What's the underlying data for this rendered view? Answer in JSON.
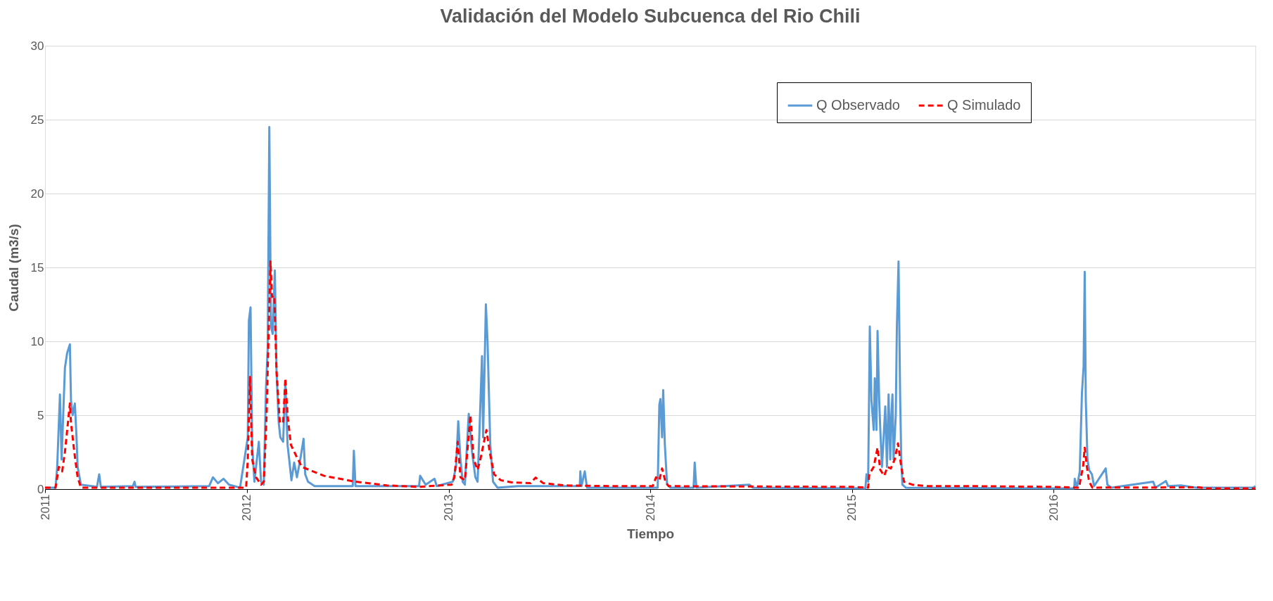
{
  "chart_data": {
    "type": "line",
    "title": "Validación del Modelo Subcuenca del Rio Chili",
    "xlabel": "Tiempo",
    "ylabel": "Caudal (m3/s)",
    "xlim": [
      "2011-01-01",
      "2016-12-31"
    ],
    "xticks": [
      {
        "value": "2011-01-01",
        "label": "2011"
      },
      {
        "value": "2012-01-01",
        "label": "2012"
      },
      {
        "value": "2013-01-01",
        "label": "2013"
      },
      {
        "value": "2014-01-01",
        "label": "2014"
      },
      {
        "value": "2015-01-01",
        "label": "2015"
      },
      {
        "value": "2016-01-01",
        "label": "2016"
      }
    ],
    "ylim": [
      0,
      30
    ],
    "yticks": [
      0,
      5,
      10,
      15,
      20,
      25,
      30
    ],
    "grid": "y",
    "legend": "top right",
    "series": [
      {
        "name": "Q Observado",
        "color": "#5b9bd5",
        "line_style": "solid",
        "x": [
          "2011-01-01",
          "2011-01-20",
          "2011-01-23",
          "2011-01-28",
          "2011-01-31",
          "2011-02-06",
          "2011-02-10",
          "2011-02-15",
          "2011-02-17",
          "2011-02-20",
          "2011-02-24",
          "2011-02-27",
          "2011-03-01",
          "2011-03-07",
          "2011-04-05",
          "2011-04-09",
          "2011-04-12",
          "2011-06-09",
          "2011-06-12",
          "2011-06-14",
          "2011-10-25",
          "2011-11-01",
          "2011-11-10",
          "2011-11-20",
          "2011-11-30",
          "2011-12-20",
          "2012-01-03",
          "2012-01-05",
          "2012-01-08",
          "2012-01-11",
          "2012-01-15",
          "2012-01-23",
          "2012-01-27",
          "2012-02-01",
          "2012-02-05",
          "2012-02-08",
          "2012-02-11",
          "2012-02-14",
          "2012-02-17",
          "2012-02-21",
          "2012-02-24",
          "2012-02-28",
          "2012-03-02",
          "2012-03-07",
          "2012-03-11",
          "2012-03-15",
          "2012-03-18",
          "2012-03-22",
          "2012-03-27",
          "2012-04-01",
          "2012-04-07",
          "2012-04-13",
          "2012-04-16",
          "2012-04-21",
          "2012-05-03",
          "2012-07-11",
          "2012-07-13",
          "2012-07-16",
          "2012-11-08",
          "2012-11-10",
          "2012-11-20",
          "2012-12-06",
          "2012-12-10",
          "2013-01-08",
          "2013-01-14",
          "2013-01-18",
          "2013-01-22",
          "2013-01-26",
          "2013-01-30",
          "2013-02-06",
          "2013-02-12",
          "2013-02-18",
          "2013-02-22",
          "2013-02-25",
          "2013-03-02",
          "2013-03-04",
          "2013-03-09",
          "2013-03-12",
          "2013-03-17",
          "2013-03-22",
          "2013-03-30",
          "2013-05-06",
          "2013-07-03",
          "2013-08-26",
          "2013-08-27",
          "2013-08-29",
          "2013-09-04",
          "2013-09-08",
          "2014-01-14",
          "2014-01-17",
          "2014-01-19",
          "2014-01-22",
          "2014-01-24",
          "2014-01-27",
          "2014-01-31",
          "2014-02-06",
          "2014-03-20",
          "2014-03-22",
          "2014-03-25",
          "2014-06-29",
          "2014-07-05",
          "2015-01-25",
          "2015-01-27",
          "2015-01-30",
          "2015-02-02",
          "2015-02-05",
          "2015-02-09",
          "2015-02-11",
          "2015-02-14",
          "2015-02-16",
          "2015-02-19",
          "2015-02-21",
          "2015-02-24",
          "2015-02-27",
          "2015-03-02",
          "2015-03-05",
          "2015-03-08",
          "2015-03-11",
          "2015-03-13",
          "2015-03-15",
          "2015-03-17",
          "2015-03-21",
          "2015-03-23",
          "2015-03-26",
          "2015-03-29",
          "2015-03-31",
          "2015-04-02",
          "2015-04-08",
          "2015-12-31",
          "2016-02-07",
          "2016-02-08",
          "2016-02-12",
          "2016-02-17",
          "2016-02-21",
          "2016-02-24",
          "2016-02-26",
          "2016-02-28",
          "2016-03-02",
          "2016-03-05",
          "2016-03-10",
          "2016-03-14",
          "2016-04-04",
          "2016-04-07",
          "2016-04-14",
          "2016-06-29",
          "2016-07-03",
          "2016-07-22",
          "2016-07-26",
          "2016-08-18",
          "2016-09-15",
          "2016-12-27",
          "2016-12-31"
        ],
        "values": [
          0.1,
          0.1,
          1.5,
          6.4,
          2.0,
          8.2,
          9.2,
          9.8,
          6.0,
          5.0,
          5.8,
          3.5,
          1.5,
          0.3,
          0.15,
          1.0,
          0.15,
          0.2,
          0.5,
          0.15,
          0.2,
          0.8,
          0.4,
          0.7,
          0.3,
          0.1,
          3.5,
          11.4,
          12.3,
          3.0,
          0.5,
          3.2,
          0.5,
          0.3,
          6.9,
          9.5,
          24.5,
          11.0,
          10.5,
          14.8,
          8.0,
          4.5,
          3.5,
          3.2,
          7.2,
          3.0,
          2.0,
          0.6,
          1.8,
          0.8,
          2.0,
          3.4,
          1.0,
          0.5,
          0.2,
          0.2,
          2.6,
          0.2,
          0.2,
          0.9,
          0.3,
          0.7,
          0.2,
          0.5,
          1.5,
          4.6,
          2.0,
          0.5,
          0.3,
          5.1,
          2.5,
          0.8,
          0.5,
          3.5,
          9.0,
          3.5,
          12.5,
          10.0,
          3.0,
          0.5,
          0.1,
          0.2,
          0.2,
          0.2,
          1.2,
          0.2,
          1.2,
          0.1,
          0.1,
          5.7,
          6.1,
          3.5,
          6.7,
          3.0,
          0.3,
          0.1,
          0.1,
          1.8,
          0.1,
          0.3,
          0.1,
          0.05,
          1.0,
          0.5,
          11.0,
          6.0,
          4.0,
          7.5,
          4.0,
          10.7,
          6.0,
          4.0,
          1.5,
          3.5,
          5.6,
          1.5,
          6.4,
          2.0,
          5.0,
          6.4,
          2.0,
          5.0,
          11.0,
          15.4,
          6.0,
          2.0,
          0.3,
          0.1,
          0.05,
          0.05,
          0.7,
          0.1,
          1.2,
          6.5,
          8.3,
          14.7,
          6.0,
          2.0,
          1.3,
          1.0,
          0.2,
          1.4,
          0.3,
          0.1,
          0.5,
          0.1,
          0.55,
          0.2,
          0.25,
          0.1,
          0.1,
          0.2
        ]
      },
      {
        "name": "Q Simulado",
        "color": "#ff0000",
        "line_style": "dashed",
        "x": [
          "2011-01-01",
          "2011-01-20",
          "2011-01-26",
          "2011-02-01",
          "2011-02-06",
          "2011-02-15",
          "2011-02-17",
          "2011-02-23",
          "2011-03-01",
          "2011-03-07",
          "2011-12-31",
          "2012-01-03",
          "2012-01-07",
          "2012-01-11",
          "2012-01-18",
          "2012-01-27",
          "2012-02-01",
          "2012-02-06",
          "2012-02-13",
          "2012-02-16",
          "2012-02-20",
          "2012-02-24",
          "2012-03-01",
          "2012-03-07",
          "2012-03-11",
          "2012-03-15",
          "2012-03-21",
          "2012-03-30",
          "2012-04-10",
          "2012-05-20",
          "2012-07-16",
          "2012-09-11",
          "2012-11-07",
          "2013-01-06",
          "2013-01-11",
          "2013-01-17",
          "2013-01-22",
          "2013-01-30",
          "2013-02-09",
          "2013-02-15",
          "2013-02-22",
          "2013-02-27",
          "2013-03-10",
          "2013-03-16",
          "2013-03-24",
          "2013-04-05",
          "2013-04-25",
          "2013-05-29",
          "2013-06-07",
          "2013-06-21",
          "2013-07-31",
          "2013-10-26",
          "2014-01-05",
          "2014-01-11",
          "2014-01-17",
          "2014-01-22",
          "2014-01-28",
          "2014-02-03",
          "2014-12-31",
          "2015-01-30",
          "2015-02-01",
          "2015-02-09",
          "2015-02-16",
          "2015-02-21",
          "2015-02-28",
          "2015-03-06",
          "2015-03-12",
          "2015-03-19",
          "2015-03-25",
          "2015-03-31",
          "2015-04-05",
          "2015-04-20",
          "2015-05-18",
          "2015-08-12",
          "2015-12-31",
          "2016-02-16",
          "2016-02-19",
          "2016-02-23",
          "2016-02-26",
          "2016-03-01",
          "2016-03-05",
          "2016-03-11",
          "2016-09-20",
          "2016-10-01",
          "2016-12-31"
        ],
        "values": [
          0.1,
          0.1,
          1.5,
          1.2,
          2.5,
          5.8,
          4.5,
          2.5,
          0.8,
          0.1,
          0.1,
          2.0,
          7.6,
          2.0,
          0.8,
          0.3,
          0.5,
          5.0,
          15.4,
          13.0,
          13.1,
          8.0,
          4.5,
          4.5,
          7.5,
          5.0,
          3.0,
          2.3,
          1.5,
          0.9,
          0.5,
          0.25,
          0.15,
          0.3,
          0.8,
          3.2,
          0.8,
          0.6,
          5.0,
          2.0,
          1.3,
          2.0,
          4.0,
          2.5,
          1.0,
          0.6,
          0.45,
          0.4,
          0.78,
          0.4,
          0.25,
          0.2,
          0.2,
          0.8,
          0.6,
          1.4,
          0.5,
          0.2,
          0.15,
          0.1,
          1.0,
          1.5,
          2.8,
          1.3,
          0.9,
          1.5,
          1.4,
          2.0,
          3.1,
          1.5,
          0.5,
          0.3,
          0.2,
          0.2,
          0.15,
          0.1,
          0.8,
          1.5,
          2.8,
          1.5,
          0.5,
          0.1,
          0.12,
          0.05,
          0.05
        ]
      }
    ]
  }
}
